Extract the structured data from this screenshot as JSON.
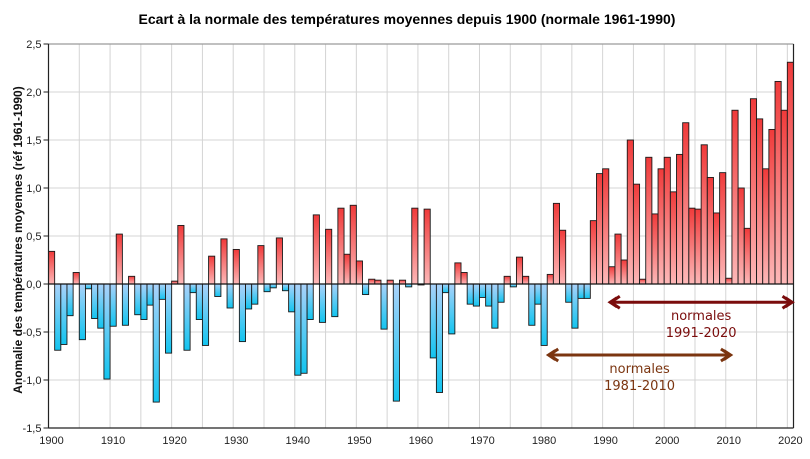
{
  "chart_data": {
    "type": "bar",
    "title": "Ecart à la normale des températures moyennes depuis 1900 (normale 1961-1990)",
    "xlabel": "",
    "ylabel": "Anomalie des températures moyennes (réf 1961-1990)",
    "ylim": [
      -1.5,
      2.5
    ],
    "xlim": [
      1900,
      2020
    ],
    "grid": true,
    "legend": "none",
    "y_ticks": [
      "-1,5",
      "-1,0",
      "-0,5",
      "0,0",
      "0,5",
      "1,0",
      "1,5",
      "2,0",
      "2,5"
    ],
    "y_tick_values": [
      -1.5,
      -1.0,
      -0.5,
      0.0,
      0.5,
      1.0,
      1.5,
      2.0,
      2.5
    ],
    "x_ticks": [
      "1900",
      "1910",
      "1920",
      "1930",
      "1940",
      "1950",
      "1960",
      "1970",
      "1980",
      "1990",
      "2000",
      "2010",
      "2020"
    ],
    "x_tick_values": [
      1900,
      1910,
      1920,
      1930,
      1940,
      1950,
      1960,
      1970,
      1980,
      1990,
      2000,
      2010,
      2020
    ],
    "colors": {
      "positive_top": "#f03a3a",
      "positive_base": "#fdb8b8",
      "negative_base": "#a9d2fa",
      "negative_bottom": "#12c4ef",
      "bar_outline": "#1a1a1a",
      "grid": "#d4d4d4"
    },
    "start_year": 1900,
    "values": [
      0.34,
      -0.69,
      -0.63,
      -0.33,
      0.12,
      -0.58,
      -0.05,
      -0.36,
      -0.46,
      -0.99,
      -0.44,
      0.52,
      -0.43,
      0.08,
      -0.32,
      -0.37,
      -0.22,
      -1.23,
      -0.16,
      -0.72,
      0.03,
      0.61,
      -0.69,
      -0.09,
      -0.37,
      -0.64,
      0.29,
      -0.13,
      0.47,
      -0.25,
      0.36,
      -0.6,
      -0.26,
      -0.21,
      0.4,
      -0.08,
      -0.04,
      0.48,
      -0.07,
      -0.29,
      -0.95,
      -0.93,
      -0.37,
      0.72,
      -0.4,
      0.57,
      -0.34,
      0.79,
      0.31,
      0.82,
      0.24,
      -0.11,
      0.05,
      0.04,
      -0.47,
      0.04,
      -1.22,
      0.04,
      -0.03,
      0.79,
      -0.01,
      0.78,
      -0.77,
      -1.13,
      -0.09,
      -0.52,
      0.22,
      0.12,
      -0.21,
      -0.23,
      -0.14,
      -0.23,
      -0.46,
      -0.19,
      0.08,
      -0.03,
      0.28,
      0.08,
      -0.43,
      -0.21,
      -0.64,
      0.1,
      0.84,
      0.56,
      -0.19,
      -0.46,
      -0.15,
      -0.15,
      0.66,
      1.15,
      1.2,
      0.18,
      0.52,
      0.25,
      1.5,
      1.04,
      0.05,
      1.32,
      0.73,
      1.2,
      1.32,
      0.96,
      1.35,
      1.68,
      0.79,
      0.78,
      1.45,
      1.11,
      0.74,
      1.16,
      0.06,
      1.81,
      1.0,
      0.58,
      1.93,
      1.72,
      1.2,
      1.61,
      2.11,
      1.81,
      2.31
    ],
    "annotations": [
      {
        "label_line1": "normales",
        "label_line2": "1991-2020",
        "from_year": 1991,
        "to_year": 2020,
        "color": "#7a0c0c",
        "y_value": -0.19
      },
      {
        "label_line1": "normales",
        "label_line2": "1981-2010",
        "from_year": 1981,
        "to_year": 2010,
        "color": "#7b3510",
        "y_value": -0.74
      }
    ]
  }
}
